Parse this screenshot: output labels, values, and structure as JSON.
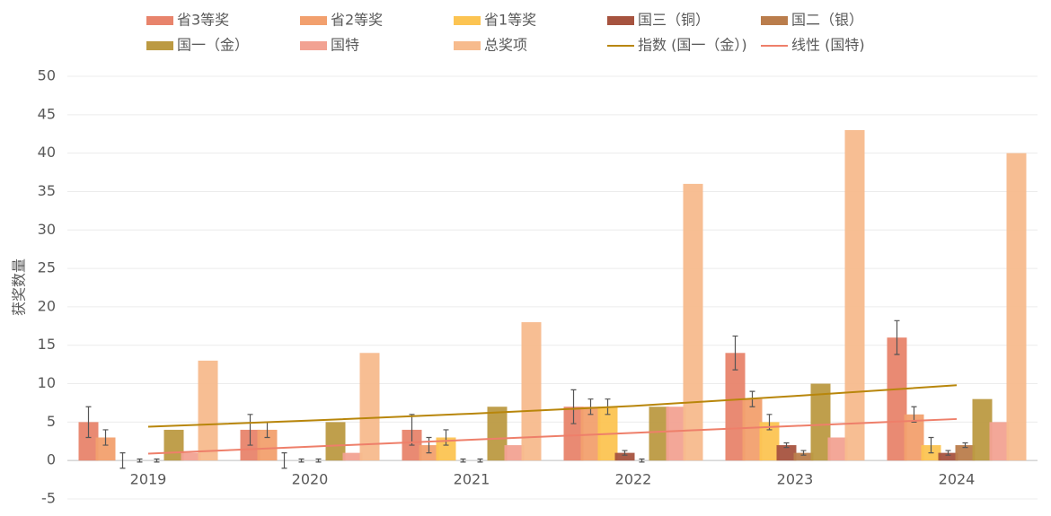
{
  "chart_data": {
    "type": "bar",
    "ylabel": "获奖数量",
    "categories": [
      "2019",
      "2020",
      "2021",
      "2022",
      "2023",
      "2024"
    ],
    "series": [
      {
        "name": "省3等奖",
        "color": "#e8846c",
        "values": [
          5,
          4,
          4,
          7,
          14,
          16
        ],
        "errors": [
          2,
          2,
          2,
          2.2,
          2.2,
          2.2
        ]
      },
      {
        "name": "省2等奖",
        "color": "#f2a06e",
        "values": [
          3,
          4,
          2,
          7,
          8,
          6
        ],
        "errors": [
          1,
          1,
          1,
          1,
          1,
          1
        ]
      },
      {
        "name": "省1等奖",
        "color": "#fcc452",
        "values": [
          0,
          0,
          3,
          7,
          5,
          2
        ],
        "errors": [
          1,
          1,
          1,
          1,
          1,
          1
        ]
      },
      {
        "name": "国三（铜）",
        "color": "#a6533f",
        "values": [
          0,
          0,
          0,
          1,
          2,
          1
        ],
        "errors": [
          0.2,
          0.2,
          0.2,
          0.3,
          0.3,
          0.3
        ]
      },
      {
        "name": "国二（银）",
        "color": "#ba7d4c",
        "values": [
          0,
          0,
          0,
          0,
          1,
          2
        ],
        "errors": [
          0.2,
          0.2,
          0.2,
          0.2,
          0.3,
          0.3
        ]
      },
      {
        "name": "国一（金）",
        "color": "#bc9a42",
        "values": [
          4,
          5,
          7,
          7,
          10,
          8
        ]
      },
      {
        "name": "国特",
        "color": "#f2a292",
        "values": [
          1,
          1,
          2,
          7,
          3,
          5
        ]
      },
      {
        "name": "总奖项",
        "color": "#f7bb8d",
        "values": [
          13,
          14,
          18,
          36,
          43,
          40
        ]
      }
    ],
    "trendlines": [
      {
        "name": "指数 (国一（金）)",
        "color": "#b8860b",
        "values": [
          4.4,
          5.2,
          6.1,
          7.1,
          8.4,
          9.8
        ]
      },
      {
        "name": "线性 (国特)",
        "color": "#ee7f6a",
        "values": [
          0.9,
          1.8,
          2.7,
          3.6,
          4.5,
          5.4
        ]
      }
    ],
    "ylim": [
      -5,
      50
    ],
    "yticks": [
      -5,
      0,
      5,
      10,
      15,
      20,
      25,
      30,
      35,
      40,
      45,
      50
    ],
    "grid": true,
    "legend": "top"
  }
}
